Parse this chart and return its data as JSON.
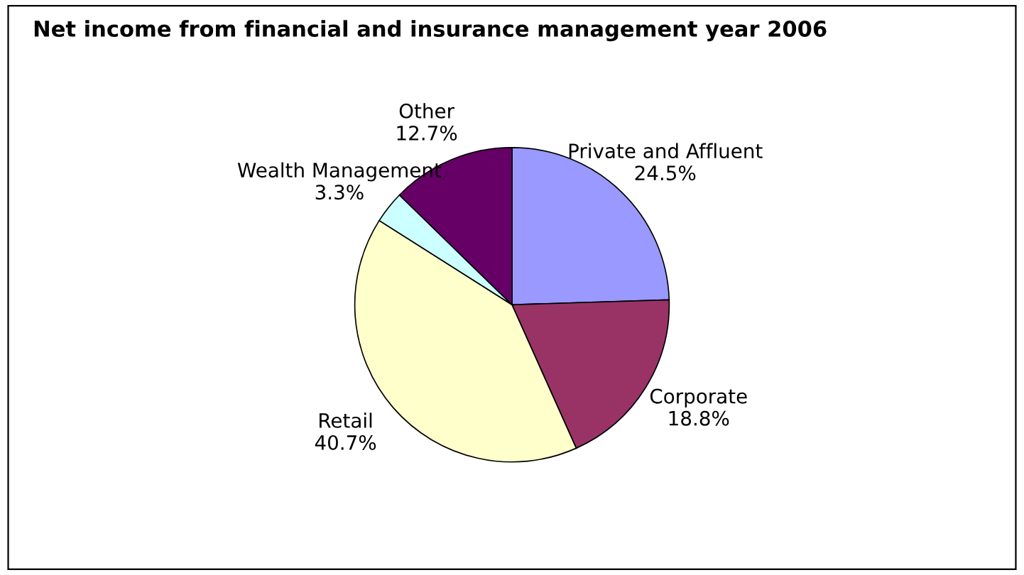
{
  "chart_data": {
    "type": "pie",
    "title": "Net income from financial and insurance management year 2006",
    "categories": [
      "Private and Affluent",
      "Corporate",
      "Retail",
      "Wealth Management",
      "Other"
    ],
    "values": [
      24.5,
      18.8,
      40.7,
      3.3,
      12.7
    ],
    "value_labels": [
      "24.5%",
      "18.8%",
      "40.7%",
      "3.3%",
      "12.7%"
    ],
    "colors": [
      "#9999ff",
      "#993366",
      "#ffffcc",
      "#ccffff",
      "#660066"
    ],
    "legend": false
  }
}
